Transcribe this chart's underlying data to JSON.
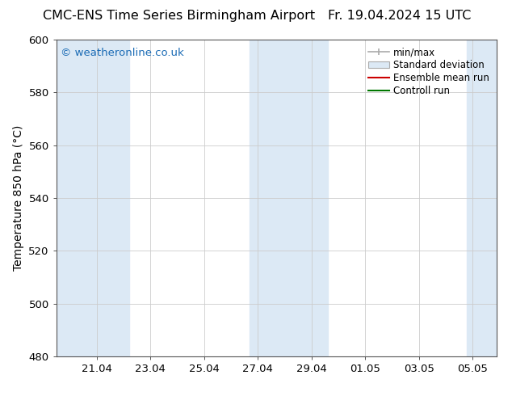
{
  "title_left": "CMC-ENS Time Series Birmingham Airport",
  "title_right": "Fr. 19.04.2024 15 UTC",
  "ylabel": "Temperature 850 hPa (°C)",
  "ylim": [
    480,
    600
  ],
  "yticks": [
    480,
    500,
    520,
    540,
    560,
    580,
    600
  ],
  "tick_labels": [
    "21.04",
    "23.04",
    "25.04",
    "27.04",
    "29.04",
    "01.05",
    "03.05",
    "05.05"
  ],
  "tick_positions": [
    21,
    23,
    25,
    27,
    29,
    31,
    33,
    35
  ],
  "xlim": [
    19.5,
    35.9
  ],
  "watermark": "© weatheronline.co.uk",
  "watermark_color": "#1a6bb5",
  "background_color": "#ffffff",
  "plot_bg_color": "#ffffff",
  "shaded_bands": [
    {
      "x_start": 19.5,
      "x_end": 22.2,
      "color": "#dce9f5"
    },
    {
      "x_start": 26.7,
      "x_end": 29.6,
      "color": "#dce9f5"
    },
    {
      "x_start": 34.8,
      "x_end": 35.9,
      "color": "#dce9f5"
    }
  ],
  "title_fontsize": 11.5,
  "tick_fontsize": 9.5,
  "ylabel_fontsize": 10,
  "watermark_fontsize": 9.5,
  "legend_fontsize": 8.5,
  "grid_color": "#cccccc",
  "spine_color": "#555555"
}
